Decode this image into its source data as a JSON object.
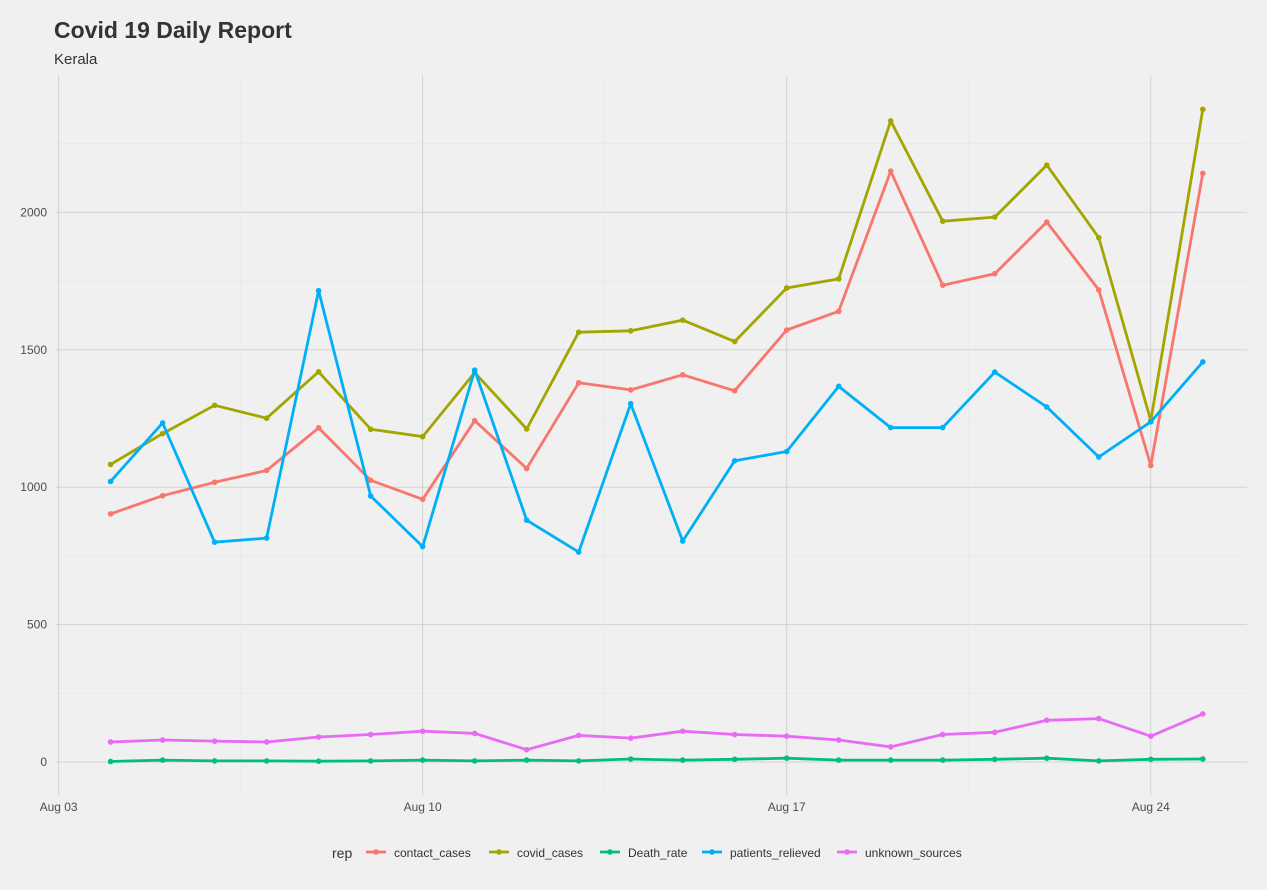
{
  "chart_data": {
    "type": "line",
    "title": "Covid 19 Daily Report",
    "subtitle": "Kerala",
    "xlabel": "",
    "ylabel": "",
    "x_ticks": [
      "Aug 03",
      "Aug 10",
      "Aug 17",
      "Aug 24"
    ],
    "x_tick_dates": [
      "2020-08-03",
      "2020-08-10",
      "2020-08-17",
      "2020-08-24"
    ],
    "xlim": [
      "2020-08-03",
      "2020-08-25"
    ],
    "y_ticks": [
      0,
      500,
      1000,
      1500,
      2000
    ],
    "ylim": [
      -120,
      2500
    ],
    "grid": true,
    "legend_position": "bottom",
    "legend_title": "rep",
    "x": [
      "2020-08-04",
      "2020-08-05",
      "2020-08-06",
      "2020-08-07",
      "2020-08-08",
      "2020-08-09",
      "2020-08-10",
      "2020-08-11",
      "2020-08-12",
      "2020-08-13",
      "2020-08-14",
      "2020-08-15",
      "2020-08-16",
      "2020-08-17",
      "2020-08-18",
      "2020-08-19",
      "2020-08-20",
      "2020-08-21",
      "2020-08-22",
      "2020-08-23",
      "2020-08-24",
      "2020-08-25"
    ],
    "series": [
      {
        "name": "contact_cases",
        "color": "#f8766d",
        "values": [
          903,
          969,
          1018,
          1061,
          1216,
          1025,
          956,
          1242,
          1068,
          1380,
          1354,
          1409,
          1351,
          1572,
          1640,
          2150,
          1735,
          1777,
          1965,
          1718,
          1079,
          2142
        ]
      },
      {
        "name": "covid_cases",
        "color": "#a3a500",
        "values": [
          1083,
          1195,
          1298,
          1251,
          1420,
          1211,
          1184,
          1417,
          1212,
          1564,
          1569,
          1608,
          1530,
          1725,
          1758,
          2333,
          1968,
          1983,
          2172,
          1908,
          1242,
          2375
        ]
      },
      {
        "name": "Death_rate",
        "color": "#00bf7d",
        "values": [
          2,
          7,
          4,
          4,
          3,
          4,
          7,
          4,
          7,
          4,
          11,
          7,
          10,
          14,
          7,
          7,
          7,
          10,
          14,
          4,
          10,
          11
        ]
      },
      {
        "name": "patients_relieved",
        "color": "#00b0f6",
        "values": [
          1021,
          1234,
          800,
          815,
          1715,
          968,
          784,
          1426,
          880,
          764,
          1304,
          804,
          1096,
          1130,
          1367,
          1217,
          1217,
          1419,
          1292,
          1110,
          1238,
          1456
        ]
      },
      {
        "name": "unknown_sources",
        "color": "#e76bf3",
        "values": [
          73,
          80,
          76,
          73,
          91,
          100,
          112,
          104,
          45,
          97,
          87,
          112,
          100,
          94,
          80,
          55,
          100,
          108,
          152,
          158,
          94,
          175
        ]
      }
    ]
  }
}
